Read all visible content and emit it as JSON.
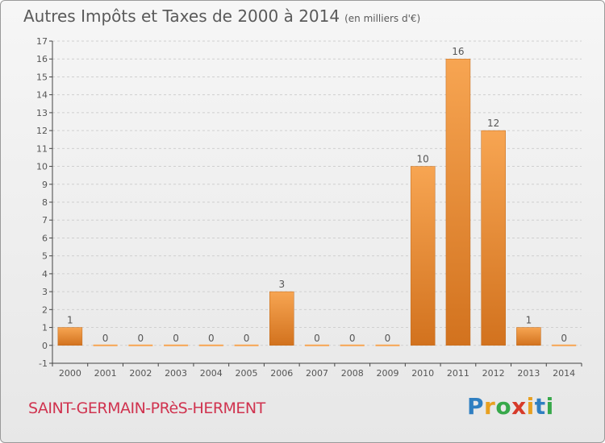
{
  "title": "Autres Impôts et Taxes de 2000 à 2014",
  "subtitle": "(en milliers d'€)",
  "commune": "SAINT-GERMAIN-PRèS-HERMENT",
  "logo": {
    "letters": [
      "P",
      "r",
      "o",
      "x",
      "i",
      "t",
      "i"
    ],
    "colors": [
      "#2f7fc1",
      "#e8a020",
      "#37a84a",
      "#d63a2a",
      "#e8a020",
      "#2f7fc1",
      "#37a84a"
    ]
  },
  "colors": {
    "bar_light": "#f7a552",
    "bar_dark": "#d2721e",
    "axis": "#444444",
    "grid": "#cfcfcf",
    "text": "#555555"
  },
  "chart_data": {
    "type": "bar",
    "categories": [
      "2000",
      "2001",
      "2002",
      "2003",
      "2004",
      "2005",
      "2006",
      "2007",
      "2008",
      "2009",
      "2010",
      "2011",
      "2012",
      "2013",
      "2014"
    ],
    "values": [
      1,
      0,
      0,
      0,
      0,
      0,
      3,
      0,
      0,
      0,
      10,
      16,
      12,
      1,
      0
    ],
    "data_labels": [
      "1",
      "0",
      "0",
      "0",
      "0",
      "0",
      "3",
      "0",
      "0",
      "0",
      "10",
      "16",
      "12",
      "1",
      "0"
    ],
    "y_ticks": [
      "-1",
      "0",
      "1",
      "2",
      "3",
      "4",
      "5",
      "6",
      "7",
      "8",
      "9",
      "10",
      "11",
      "12",
      "13",
      "14",
      "15",
      "16",
      "17"
    ],
    "ylim": [
      -1,
      17
    ],
    "grid": true,
    "legend": "none"
  }
}
